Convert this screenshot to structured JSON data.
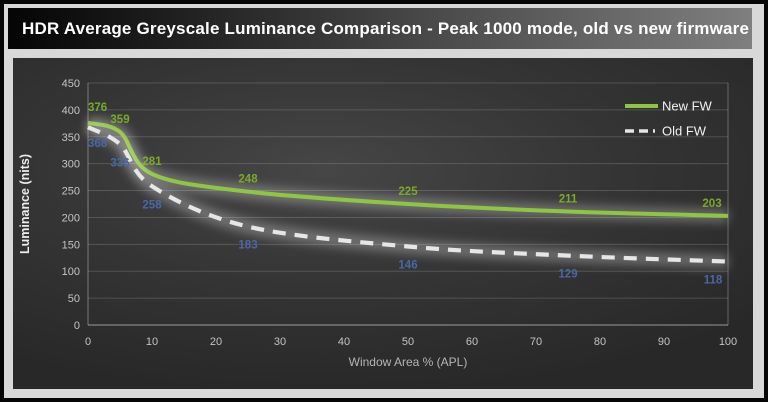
{
  "title_bar": {
    "title": "HDR Average Greyscale Luminance Comparison - Peak 1000 mode, old vs new firmware"
  },
  "chart_data": {
    "type": "line",
    "title": "HDR Average Greyscale Luminance Comparison - Peak 1000 mode, old vs new firmware",
    "x": [
      0,
      5,
      10,
      25,
      50,
      75,
      100
    ],
    "series": [
      {
        "name": "New FW",
        "values": [
          376,
          359,
          281,
          248,
          225,
          211,
          203
        ],
        "color": "#8dc63f",
        "label_color": "#79ab28",
        "style": "solid"
      },
      {
        "name": "Old FW",
        "values": [
          368,
          336,
          258,
          183,
          146,
          129,
          118
        ],
        "color": "#e6e6e6",
        "label_color": "#4868a8",
        "style": "dashed"
      }
    ],
    "xlabel": "Window Area % (APL)",
    "ylabel": "Luminance (nits)",
    "xlim": [
      0,
      100
    ],
    "ylim": [
      0,
      450
    ],
    "x_ticks": [
      0,
      10,
      20,
      30,
      40,
      50,
      60,
      70,
      80,
      90,
      100
    ],
    "y_ticks": [
      0,
      50,
      100,
      150,
      200,
      250,
      300,
      350,
      400,
      450
    ],
    "grid": "horizontal",
    "legend_position": "top-right",
    "colors": {
      "tick_label": "#c4c4c4",
      "axis_title_x": "#b5b5b5",
      "axis_title_y": "#ececec",
      "legend_text": "#f2f2f2",
      "gridline": "rgba(255,255,255,0.16)",
      "axis_line": "rgba(255,255,255,0.42)",
      "glow": "#ffffff"
    }
  }
}
